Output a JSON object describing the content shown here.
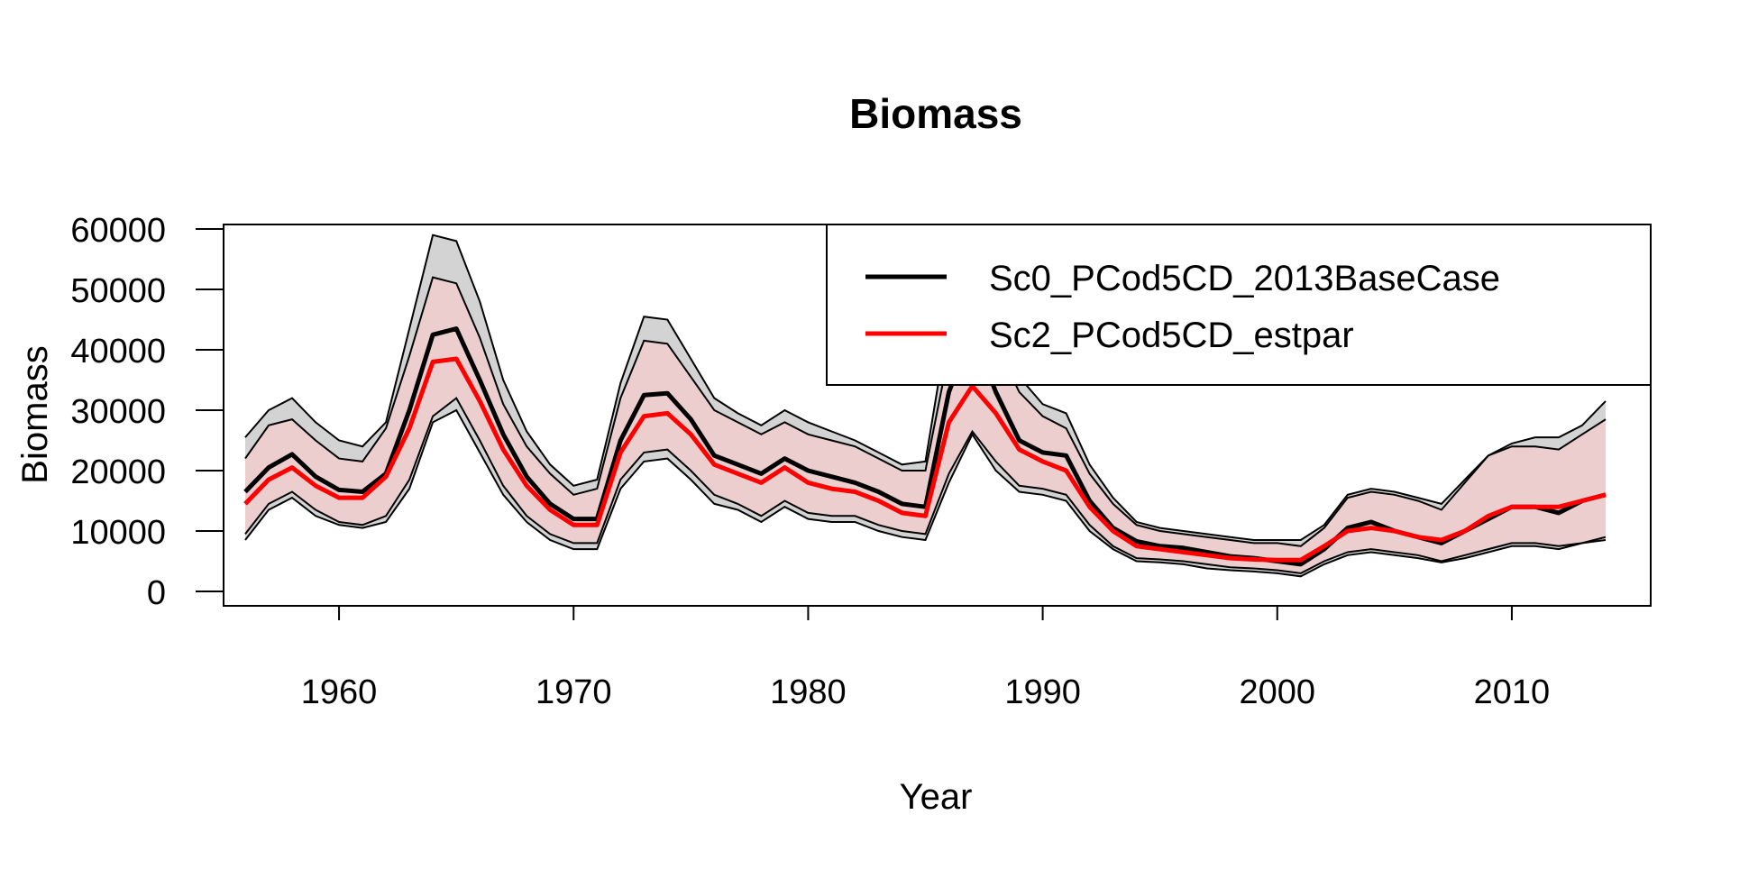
{
  "chart_data": {
    "type": "area",
    "title": "Biomass",
    "xlabel": "Year",
    "ylabel": "Biomass",
    "xlim": [
      1956,
      2014
    ],
    "ylim": [
      0,
      60000
    ],
    "x_ticks": [
      "1960",
      "1970",
      "1980",
      "1990",
      "2000",
      "2010"
    ],
    "y_ticks": [
      "0",
      "10000",
      "20000",
      "30000",
      "40000",
      "50000",
      "60000"
    ],
    "grid": false,
    "legend_position": "top-right",
    "x": [
      1956,
      1957,
      1958,
      1959,
      1960,
      1961,
      1962,
      1963,
      1964,
      1965,
      1966,
      1967,
      1968,
      1969,
      1970,
      1971,
      1972,
      1973,
      1974,
      1975,
      1976,
      1977,
      1978,
      1979,
      1980,
      1981,
      1982,
      1983,
      1984,
      1985,
      1986,
      1987,
      1988,
      1989,
      1990,
      1991,
      1992,
      1993,
      1994,
      1995,
      1996,
      1997,
      1998,
      1999,
      2000,
      2001,
      2002,
      2003,
      2004,
      2005,
      2006,
      2007,
      2008,
      2009,
      2010,
      2011,
      2012,
      2013,
      2014
    ],
    "series": [
      {
        "name": "Sc0_PCod5CD_2013BaseCase",
        "color": "#000000",
        "band_color": "#d3d3d3",
        "values": [
          16500,
          20500,
          22700,
          19000,
          16800,
          16500,
          19500,
          30000,
          42500,
          43500,
          35000,
          26000,
          19000,
          14500,
          12000,
          12000,
          25000,
          32500,
          32800,
          28500,
          22500,
          21000,
          19500,
          22000,
          20000,
          19000,
          18000,
          16500,
          14500,
          14000,
          33000,
          43000,
          33000,
          25000,
          23000,
          22500,
          15000,
          10500,
          8300,
          7500,
          7200,
          6500,
          5800,
          5500,
          5000,
          4500,
          7000,
          10500,
          11500,
          10000,
          9000,
          8000,
          10000,
          12000,
          14000,
          14000,
          13000,
          15000,
          16000
        ],
        "lower": [
          8500,
          13500,
          15500,
          12500,
          11000,
          10500,
          11500,
          17000,
          28000,
          30000,
          23000,
          16000,
          11500,
          8500,
          7000,
          7000,
          17000,
          21500,
          22000,
          18500,
          14500,
          13500,
          11500,
          14000,
          12000,
          11500,
          11500,
          10000,
          9000,
          8500,
          18000,
          26000,
          20000,
          16500,
          16000,
          15000,
          10000,
          7000,
          5000,
          4800,
          4500,
          3800,
          3500,
          3300,
          3000,
          2500,
          4500,
          6000,
          6500,
          6000,
          5500,
          4800,
          5500,
          6500,
          7500,
          7500,
          7000,
          8000,
          8500
        ],
        "upper": [
          25500,
          30000,
          32000,
          28000,
          25000,
          24000,
          28000,
          43500,
          59000,
          58000,
          48000,
          35000,
          26500,
          21000,
          17500,
          18500,
          34500,
          45500,
          45000,
          38500,
          32000,
          29500,
          27500,
          30000,
          28000,
          26500,
          25000,
          23000,
          21000,
          21500,
          45000,
          57000,
          45000,
          35500,
          31000,
          29500,
          21000,
          15500,
          11500,
          10500,
          10000,
          9500,
          9000,
          8500,
          8500,
          8500,
          11000,
          16000,
          17000,
          16500,
          15500,
          14500,
          18500,
          22500,
          24500,
          25500,
          25500,
          27500,
          31500
        ]
      },
      {
        "name": "Sc2_PCod5CD_estpar",
        "color": "#ff0000",
        "band_color": "#ffcccc",
        "values": [
          14500,
          18500,
          20500,
          17500,
          15500,
          15500,
          19000,
          27000,
          38000,
          38500,
          31500,
          23500,
          17500,
          13500,
          11000,
          11000,
          23000,
          29000,
          29500,
          26000,
          21000,
          19500,
          18000,
          20500,
          18000,
          17000,
          16500,
          15000,
          13000,
          12500,
          28000,
          34000,
          29500,
          23500,
          21500,
          20000,
          14000,
          10000,
          7500,
          7000,
          6500,
          6000,
          5500,
          5300,
          5200,
          5200,
          7500,
          10000,
          10500,
          10000,
          9000,
          8500,
          10000,
          12500,
          14000,
          14000,
          14000,
          15000,
          16000
        ],
        "lower": [
          9500,
          14500,
          16500,
          13500,
          11500,
          11000,
          12500,
          18500,
          29000,
          32000,
          25000,
          17500,
          12500,
          9500,
          8000,
          8000,
          18500,
          23000,
          23500,
          20000,
          16000,
          14500,
          12500,
          15000,
          13000,
          12500,
          12500,
          11000,
          10000,
          9500,
          19500,
          26500,
          21500,
          17500,
          17000,
          16000,
          11000,
          7500,
          5500,
          5300,
          5000,
          4500,
          4000,
          3800,
          3500,
          3000,
          5000,
          6500,
          7000,
          6500,
          6000,
          5000,
          6000,
          7000,
          8000,
          8000,
          7500,
          8000,
          9000
        ],
        "upper": [
          22000,
          27500,
          28500,
          25000,
          22000,
          21500,
          27000,
          39000,
          52000,
          51000,
          42000,
          31000,
          24000,
          19500,
          16000,
          17000,
          32000,
          41500,
          41000,
          35500,
          30000,
          28000,
          26000,
          28000,
          26000,
          25000,
          24000,
          22000,
          20000,
          20000,
          39500,
          48500,
          41000,
          33000,
          29000,
          27000,
          19500,
          14500,
          11000,
          10000,
          9500,
          9000,
          8500,
          8000,
          8000,
          7500,
          10500,
          15500,
          16500,
          16000,
          15000,
          13500,
          18000,
          22500,
          24000,
          24000,
          23500,
          26000,
          28500
        ]
      }
    ]
  }
}
